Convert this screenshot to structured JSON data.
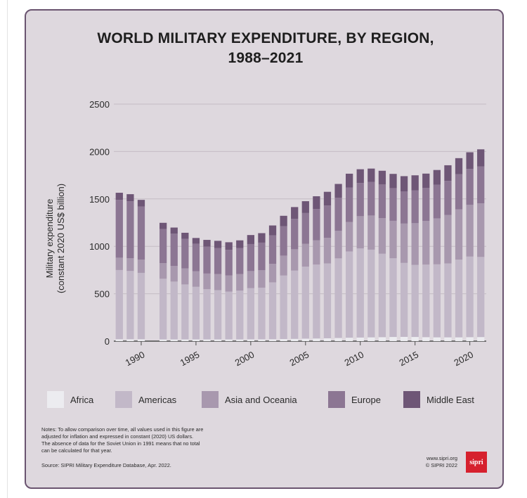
{
  "title_line1": "WORLD MILITARY EXPENDITURE, BY REGION,",
  "title_line2": "1988–2021",
  "notes_lines": [
    "Notes: To allow comparison over time, all values used in this figure are",
    "adjusted for inflation and expressed in constant (2020) US dollars.",
    "The absence of data for the Soviet Union in 1991 means that no total",
    "can be calculated for that year."
  ],
  "source": "Source: SIPRI Military Expenditure Database, Apr. 2022.",
  "website": "www.sipri.org",
  "copyright": "© SIPRI 2022",
  "logo_text": "sipri",
  "colors": {
    "Africa": "#ececf0",
    "Americas": "#c2b8c8",
    "Asia and Oceania": "#a898ae",
    "Europe": "#8c7693",
    "Middle East": "#6e5676",
    "background": "#ded8de",
    "border": "#6a5470"
  },
  "chart_data": {
    "type": "bar",
    "stacked": true,
    "title": "WORLD MILITARY EXPENDITURE, BY REGION, 1988–2021",
    "ylabel_line1": "Military expenditure",
    "ylabel_line2": "(constant 2020 US$ billion)",
    "xlabel": "",
    "ylim": [
      0,
      2500
    ],
    "yticks": [
      0,
      500,
      1000,
      1500,
      2000,
      2500
    ],
    "xticks": [
      1990,
      1995,
      2000,
      2005,
      2010,
      2015,
      2020
    ],
    "grid": true,
    "legend": "bottom",
    "x": [
      1988,
      1989,
      1990,
      1991,
      1992,
      1993,
      1994,
      1995,
      1996,
      1997,
      1998,
      1999,
      2000,
      2001,
      2002,
      2003,
      2004,
      2005,
      2006,
      2007,
      2008,
      2009,
      2010,
      2011,
      2012,
      2013,
      2014,
      2015,
      2016,
      2017,
      2018,
      2019,
      2020,
      2021
    ],
    "series": [
      {
        "name": "Africa",
        "values": [
          20,
          20,
          20,
          null,
          18,
          18,
          18,
          18,
          18,
          18,
          18,
          18,
          19,
          19,
          20,
          22,
          24,
          26,
          28,
          30,
          33,
          36,
          38,
          40,
          42,
          44,
          45,
          44,
          42,
          40,
          40,
          40,
          42,
          43
        ]
      },
      {
        "name": "Americas",
        "values": [
          730,
          720,
          700,
          null,
          640,
          610,
          580,
          555,
          530,
          520,
          505,
          515,
          540,
          545,
          600,
          670,
          720,
          760,
          780,
          790,
          840,
          910,
          940,
          925,
          880,
          830,
          780,
          760,
          765,
          770,
          780,
          820,
          850,
          845
        ]
      },
      {
        "name": "Asia and Oceania",
        "values": [
          130,
          135,
          140,
          null,
          165,
          165,
          170,
          165,
          165,
          170,
          170,
          175,
          180,
          185,
          195,
          210,
          225,
          240,
          255,
          270,
          290,
          310,
          340,
          360,
          375,
          395,
          415,
          440,
          460,
          485,
          510,
          530,
          545,
          565
        ]
      },
      {
        "name": "Europe",
        "values": [
          610,
          600,
          560,
          null,
          360,
          340,
          310,
          290,
          285,
          275,
          270,
          275,
          285,
          290,
          300,
          310,
          320,
          325,
          330,
          340,
          350,
          365,
          350,
          355,
          355,
          345,
          340,
          345,
          350,
          355,
          360,
          370,
          380,
          390
        ]
      },
      {
        "name": "Middle East",
        "values": [
          75,
          75,
          70,
          null,
          65,
          65,
          65,
          60,
          70,
          75,
          80,
          80,
          95,
          100,
          105,
          110,
          125,
          125,
          135,
          145,
          145,
          145,
          145,
          140,
          145,
          150,
          160,
          160,
          150,
          155,
          165,
          170,
          175,
          180
        ]
      }
    ]
  }
}
